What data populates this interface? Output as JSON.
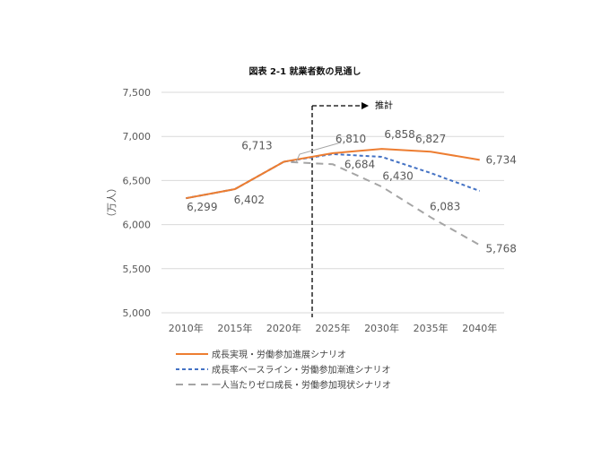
{
  "chart_data": {
    "type": "line",
    "title": "図表 2-1  就業者数の見通し",
    "ylabel": "（万人）",
    "xlabel": "",
    "ylim": [
      5000,
      7500
    ],
    "yticks": [
      5000,
      5500,
      6000,
      6500,
      7000,
      7500
    ],
    "ytick_labels": [
      "5,000",
      "5,500",
      "6,000",
      "6,500",
      "7,000",
      "7,500"
    ],
    "categories": [
      "2010年",
      "2015年",
      "2020年",
      "2025年",
      "2030年",
      "2035年",
      "2040年"
    ],
    "grid": true,
    "legend_position": "bottom-left",
    "annotation": {
      "text": "推計",
      "at": "between 2020 and 2025"
    },
    "series": [
      {
        "name": "成長実現・労働参加進展シナリオ",
        "color": "#ED7D31",
        "style": "solid",
        "values": [
          6299,
          6402,
          6713,
          6810,
          6858,
          6827,
          6734
        ],
        "labels": [
          "6,299",
          "6,402",
          "6,713",
          "6,810",
          "6,858",
          "6,827",
          "6,734"
        ]
      },
      {
        "name": "成長率ベースライン・労働参加漸進シナリオ",
        "color": "#4472C4",
        "style": "dashed",
        "values": [
          6299,
          6402,
          6713,
          6800,
          6768,
          6585,
          6382
        ],
        "labels": []
      },
      {
        "name": "一人当たりゼロ成長・労働参加現状シナリオ",
        "color": "#A5A5A5",
        "style": "longdash",
        "values": [
          6299,
          6402,
          6713,
          6684,
          6430,
          6083,
          5768
        ],
        "labels": [
          "",
          "",
          "",
          "6,684",
          "6,430",
          "6,083",
          "5,768"
        ]
      }
    ]
  }
}
